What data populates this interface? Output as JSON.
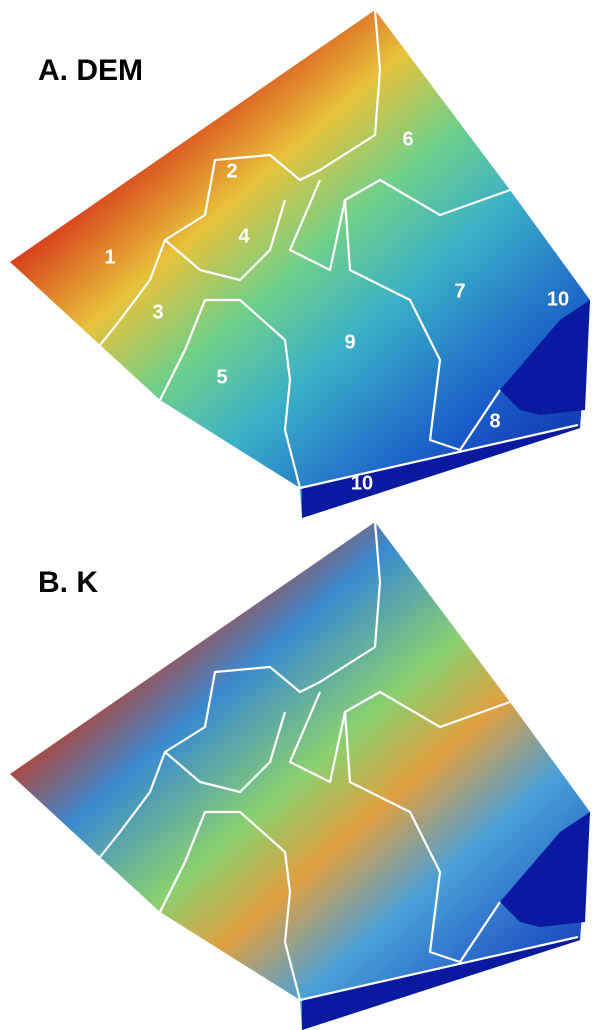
{
  "panels": [
    {
      "title": "A. DEM",
      "regions": [
        "1",
        "2",
        "3",
        "4",
        "5",
        "6",
        "7",
        "8",
        "9",
        "10",
        "10"
      ]
    },
    {
      "title": "B. K"
    }
  ]
}
